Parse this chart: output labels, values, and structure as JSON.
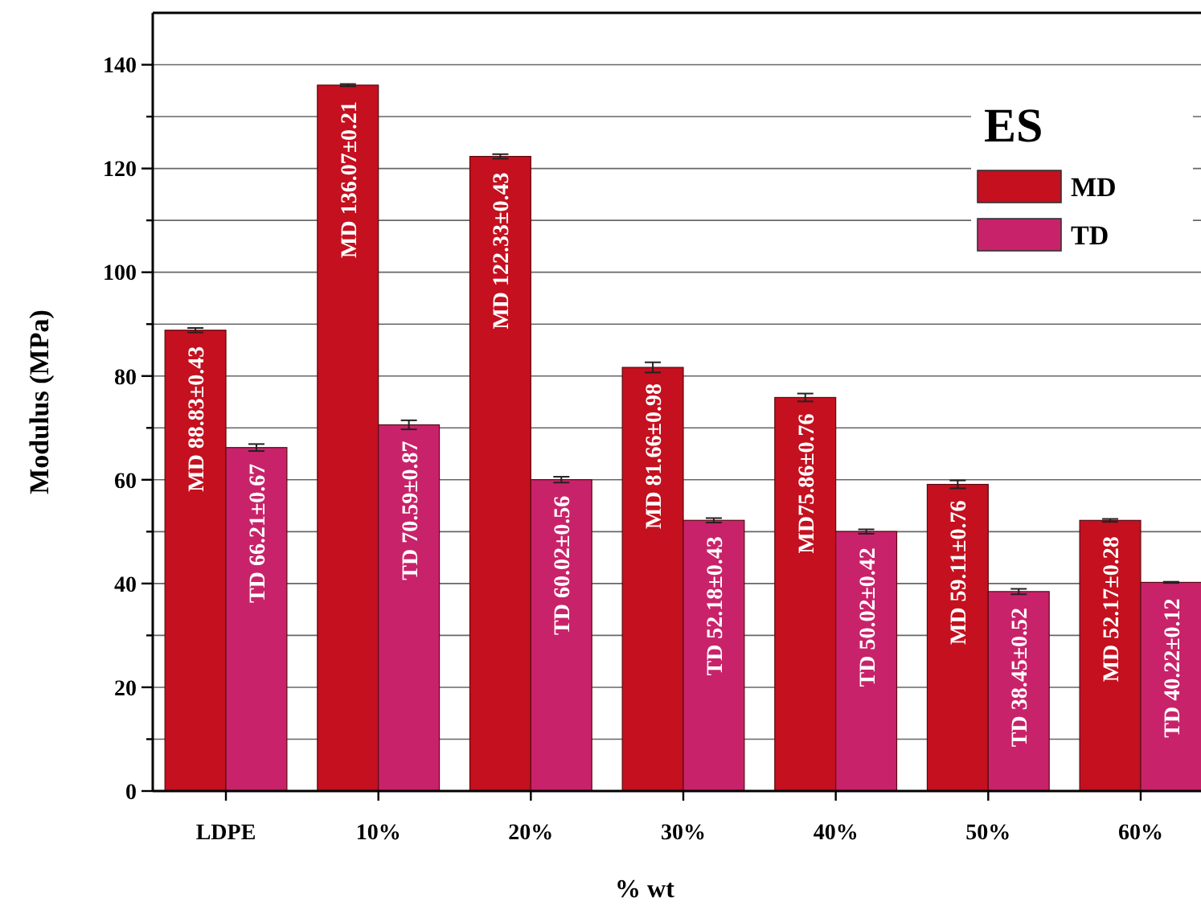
{
  "chart_data": {
    "type": "bar",
    "xlabel": "% wt",
    "ylabel": "Modulus (MPa)",
    "legend_title": "ES",
    "categories": [
      "LDPE",
      "10%",
      "20%",
      "30%",
      "40%",
      "50%",
      "60%"
    ],
    "series": [
      {
        "name": "MD",
        "color": "#c4101f",
        "values": [
          88.83,
          136.07,
          122.33,
          81.66,
          75.86,
          59.11,
          52.17
        ],
        "errors": [
          0.43,
          0.21,
          0.43,
          0.98,
          0.76,
          0.76,
          0.28
        ],
        "value_labels": [
          "MD 88.83±0.43",
          "MD 136.07±0.21",
          "MD 122.33±0.43",
          "MD 81.66±0.98",
          "MD75.86±0.76",
          "MD 59.11±0.76",
          "MD 52.17±0.28"
        ]
      },
      {
        "name": "TD",
        "color": "#c8236a",
        "values": [
          66.21,
          70.59,
          60.02,
          52.18,
          50.02,
          38.45,
          40.22
        ],
        "errors": [
          0.67,
          0.87,
          0.56,
          0.43,
          0.42,
          0.52,
          0.12
        ],
        "value_labels": [
          "TD 66.21±0.67",
          "TD 70.59±0.87",
          "TD 60.02±0.56",
          "TD 52.18±0.43",
          "TD 50.02±0.42",
          "TD 38.45±0.52",
          "TD 40.22±0.12"
        ]
      }
    ],
    "ylim": [
      0,
      150
    ],
    "yticks": [
      0,
      {
        "value": 10,
        "label": null
      },
      20,
      {
        "value": 30,
        "label": null
      },
      40,
      {
        "value": 50,
        "label": null
      },
      60,
      {
        "value": 70,
        "label": null
      },
      80,
      {
        "value": 90,
        "label": null
      },
      100,
      {
        "value": 110,
        "label": null
      },
      120,
      {
        "value": 130,
        "label": null
      },
      140
    ],
    "grid": "y",
    "legend": "top right"
  }
}
